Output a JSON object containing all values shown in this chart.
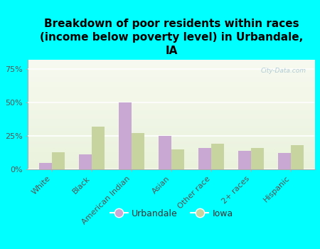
{
  "title": "Breakdown of poor residents within races\n(income below poverty level) in Urbandale,\nIA",
  "categories": [
    "White",
    "Black",
    "American Indian",
    "Asian",
    "Other race",
    "2+ races",
    "Hispanic"
  ],
  "urbandale_values": [
    5,
    11,
    50,
    25,
    16,
    14,
    12
  ],
  "iowa_values": [
    13,
    32,
    27,
    15,
    19,
    16,
    18
  ],
  "urbandale_color": "#c9a8d4",
  "iowa_color": "#c8d4a0",
  "background_color": "#00ffff",
  "plot_bg_top": "#eaf2dc",
  "plot_bg_bottom": "#f7faf0",
  "ylabel_ticks": [
    0,
    25,
    50,
    75
  ],
  "ylabel_labels": [
    "0%",
    "25%",
    "50%",
    "75%"
  ],
  "ylim": [
    0,
    82
  ],
  "watermark": "City-Data.com",
  "legend_urbandale": "Urbandale",
  "legend_iowa": "Iowa",
  "title_fontsize": 11,
  "tick_fontsize": 8,
  "legend_fontsize": 9
}
